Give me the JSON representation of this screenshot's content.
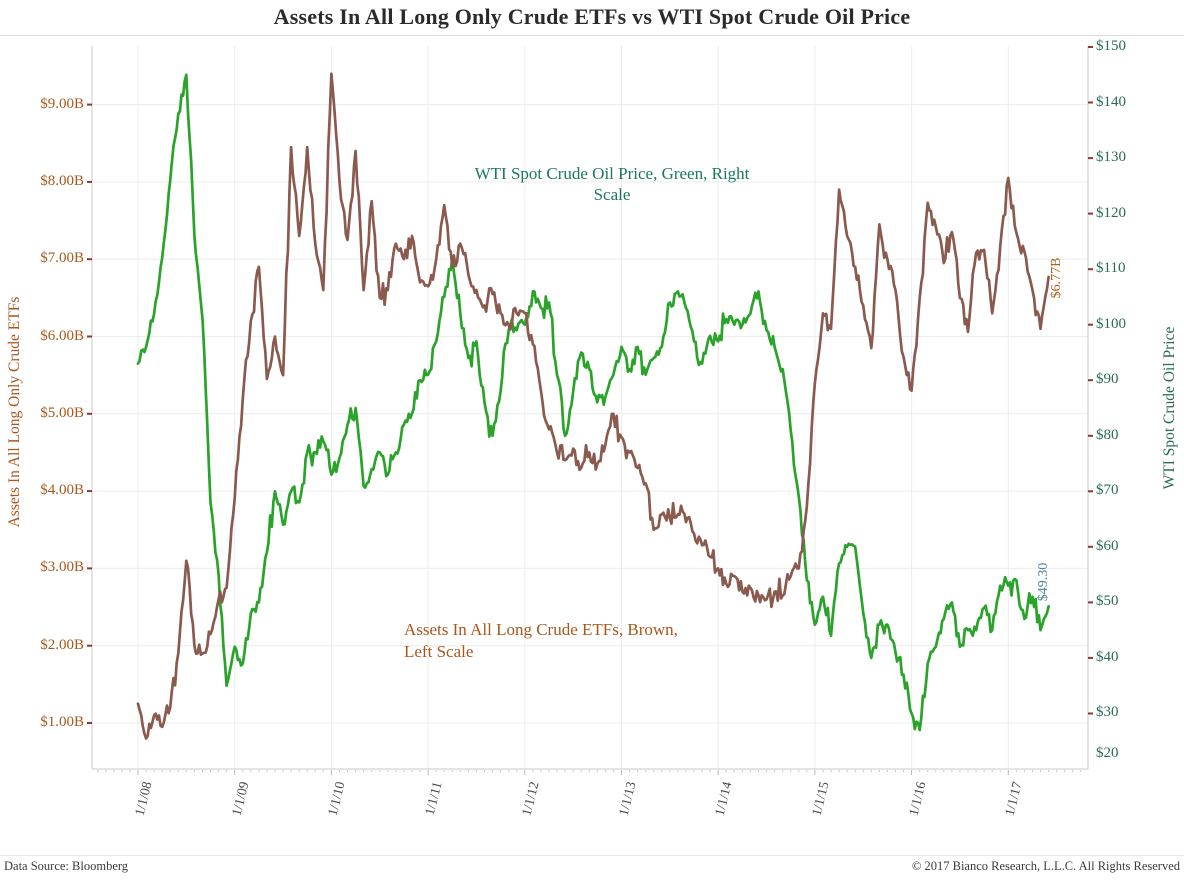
{
  "title": "Assets In All Long Only Crude ETFs vs WTI Spot Crude Oil Price",
  "annotations": {
    "wti": {
      "line1": "WTI Spot Crude Oil Price, Green, Right",
      "line2": "Scale"
    },
    "etf": {
      "line1": "Assets In All Long Crude ETFs, Brown,",
      "line2": "Left Scale"
    }
  },
  "end_labels": {
    "etf": "$6.77B",
    "wti": "$49.30"
  },
  "footer": {
    "left": "Data Source: Bloomberg",
    "right": "© 2017 Bianco Research, L.L.C. All Rights Reserved"
  },
  "colors": {
    "wti_line": "#2aa32b",
    "etf_line": "#8a5a4e",
    "left_text": "#a9571c",
    "right_text": "#2a6b54",
    "wti_note": "#187a58",
    "etf_end_label": "#ab631f",
    "wti_end_label": "#4e86a0",
    "gridline": "#ececec",
    "axis_frame": "#c9c9c9",
    "tick_dash": "#8e3a33",
    "minor_tick": "#c6c6c6"
  },
  "chart_data": {
    "type": "line",
    "title": "Assets In All Long Only Crude ETFs vs WTI Spot Crude Oil Price",
    "x_start": "2008-01",
    "x_interval": "monthly",
    "x_end": "2017-06",
    "x_tick_labels": [
      "1/1/08",
      "1/1/09",
      "1/1/10",
      "1/1/11",
      "1/1/12",
      "1/1/13",
      "1/1/14",
      "1/1/15",
      "1/1/16",
      "1/1/17"
    ],
    "grid": "on",
    "left_axis": {
      "label": "Assets In All Long Only Crude ETFs",
      "tick_labels": [
        "$1.00B",
        "$2.00B",
        "$3.00B",
        "$4.00B",
        "$5.00B",
        "$6.00B",
        "$7.00B",
        "$8.00B",
        "$9.00B"
      ],
      "tick_values": [
        1,
        2,
        3,
        4,
        5,
        6,
        7,
        8,
        9
      ],
      "ylim": [
        0.4,
        9.76
      ]
    },
    "right_axis": {
      "label": "WTI Spot Crude Oil Price",
      "tick_labels": [
        "$20",
        "$30",
        "$40",
        "$50",
        "$60",
        "$70",
        "$80",
        "$90",
        "$100",
        "$110",
        "$120",
        "$130",
        "$140",
        "$150"
      ],
      "tick_values": [
        20,
        30,
        40,
        50,
        60,
        70,
        80,
        90,
        100,
        110,
        120,
        130,
        140,
        150
      ],
      "ylim": [
        20,
        150
      ]
    },
    "series": [
      {
        "name": "WTI Spot Crude Oil Price",
        "axis": "right",
        "color": "#2aa32b",
        "data_name": "wti-line",
        "last_value": 49.3,
        "values": [
          93,
          96,
          102,
          112,
          126,
          138,
          145,
          116,
          101,
          68,
          55,
          35,
          42,
          39,
          48,
          50,
          59,
          70,
          64,
          70,
          68,
          77,
          77,
          79,
          73,
          76,
          82,
          85,
          71,
          74,
          77,
          73,
          77,
          82,
          84,
          90,
          91,
          97,
          105,
          112,
          102,
          94,
          97,
          86,
          80,
          88,
          99,
          99,
          100,
          106,
          103,
          104,
          91,
          80,
          88,
          95,
          92,
          86,
          87,
          91,
          96,
          92,
          96,
          91,
          94,
          96,
          104,
          106,
          103,
          97,
          93,
          98,
          97,
          101,
          100,
          100,
          102,
          106,
          99,
          96,
          92,
          81,
          69,
          54,
          46,
          51,
          44,
          57,
          60,
          60,
          48,
          40,
          46,
          46,
          41,
          37,
          30,
          27,
          39,
          42,
          47,
          50,
          42,
          45,
          45,
          49,
          45,
          53,
          53,
          54,
          47,
          51,
          45,
          49.3
        ]
      },
      {
        "name": "Assets In All Long Crude ETFs",
        "axis": "left",
        "color": "#8a5a4e",
        "data_name": "etf-assets-line",
        "last_value": 6.77,
        "values": [
          1.25,
          0.8,
          1.1,
          0.95,
          1.2,
          1.9,
          3.1,
          2.0,
          1.9,
          2.15,
          2.6,
          2.75,
          3.9,
          5.2,
          6.2,
          6.9,
          5.45,
          6.0,
          5.5,
          8.45,
          7.3,
          8.45,
          7.2,
          6.6,
          9.4,
          8.0,
          7.25,
          8.4,
          6.6,
          7.75,
          6.5,
          6.6,
          7.2,
          7.0,
          7.3,
          6.7,
          6.65,
          7.0,
          7.7,
          6.9,
          7.2,
          6.8,
          6.6,
          6.4,
          6.55,
          6.3,
          6.15,
          6.3,
          6.3,
          5.9,
          5.3,
          4.8,
          4.5,
          4.4,
          4.55,
          4.3,
          4.5,
          4.35,
          4.6,
          5.0,
          4.7,
          4.5,
          4.3,
          4.1,
          3.5,
          3.7,
          3.65,
          3.7,
          3.6,
          3.45,
          3.3,
          3.15,
          3.0,
          2.8,
          2.9,
          2.7,
          2.75,
          2.65,
          2.6,
          2.7,
          2.65,
          2.9,
          3.0,
          3.8,
          5.4,
          6.3,
          6.1,
          7.9,
          7.3,
          6.9,
          6.4,
          5.85,
          7.45,
          7.0,
          6.6,
          5.74,
          5.3,
          6.5,
          7.73,
          7.42,
          6.95,
          7.35,
          6.5,
          6.06,
          7.08,
          7.12,
          6.3,
          7.16,
          8.05,
          7.34,
          7.1,
          6.6,
          6.1,
          6.77
        ]
      }
    ]
  }
}
